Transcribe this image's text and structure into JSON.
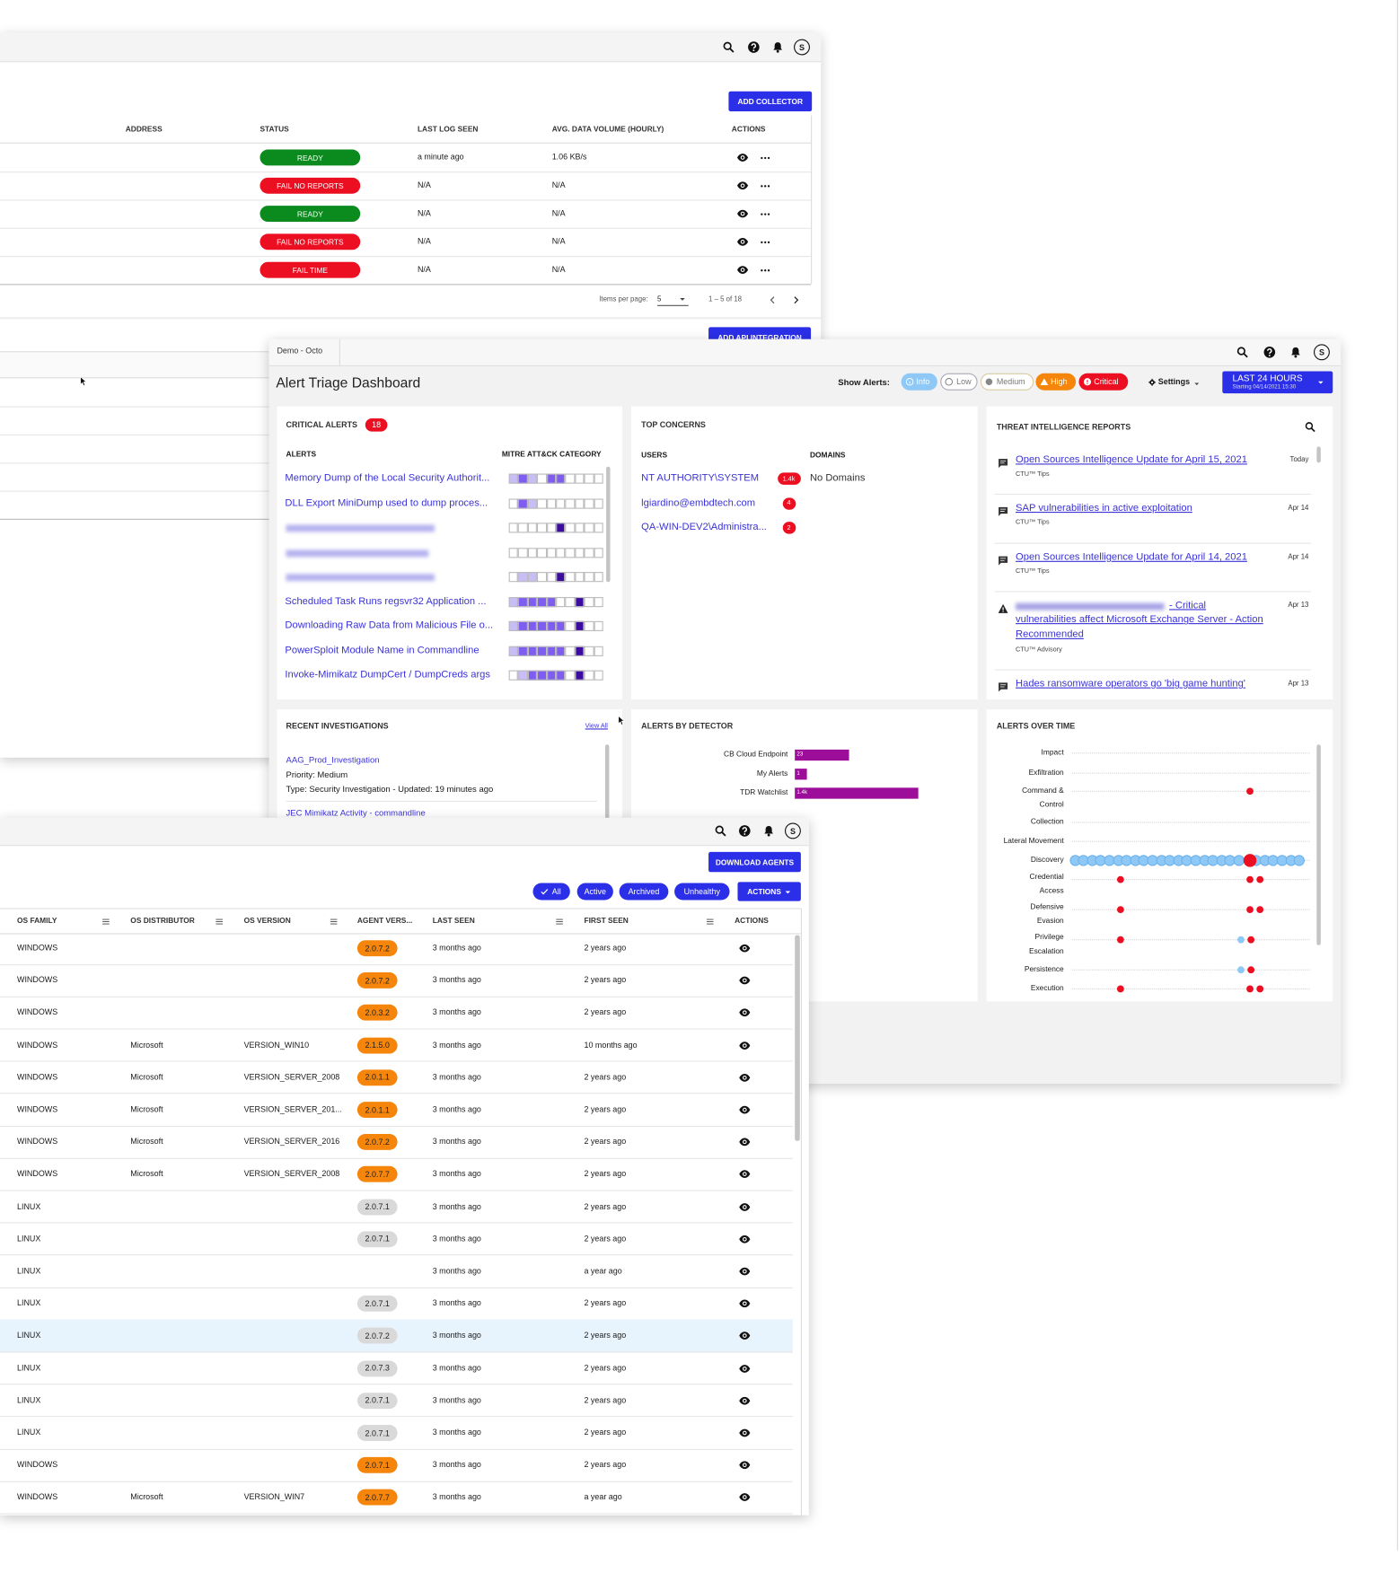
{
  "user_initial": "S",
  "collectors": {
    "add_button": "ADD COLLECTOR",
    "headers": [
      "ADDRESS",
      "STATUS",
      "LAST LOG SEEN",
      "AVG. DATA VOLUME (HOURLY)",
      "ACTIONS"
    ],
    "rows": [
      {
        "status": "READY",
        "status_color": "#0b8a1e",
        "last_log": "a minute ago",
        "volume": "1.06 KB/s"
      },
      {
        "status": "FAIL NO REPORTS",
        "status_color": "#ec0f22",
        "last_log": "N/A",
        "volume": "N/A"
      },
      {
        "status": "READY",
        "status_color": "#0b8a1e",
        "last_log": "N/A",
        "volume": "N/A"
      },
      {
        "status": "FAIL NO REPORTS",
        "status_color": "#ec0f22",
        "last_log": "N/A",
        "volume": "N/A"
      },
      {
        "status": "FAIL TIME",
        "status_color": "#ec0f22",
        "last_log": "N/A",
        "volume": "N/A"
      }
    ],
    "pagination": {
      "label": "Items per page:",
      "size": "5",
      "range": "1 – 5 of 18"
    },
    "api_button": "ADD API INTEGRATION"
  },
  "dashboard": {
    "tenant": "Demo - Octo",
    "title": "Alert Triage Dashboard",
    "show_alerts": "Show Alerts:",
    "filters": [
      {
        "label": "Info",
        "color": "#8ec8f6"
      },
      {
        "label": "Low",
        "color": "#ffffff"
      },
      {
        "label": "Medium",
        "color": "#ffffff"
      },
      {
        "label": "High",
        "color": "#f5860b"
      },
      {
        "label": "Critical",
        "color": "#ec0f22"
      }
    ],
    "settings": "Settings",
    "time_range": {
      "label": "LAST 24 HOURS",
      "sub": "Starting 04/14/2021 15:30"
    },
    "critical_alerts": {
      "title": "CRITICAL ALERTS",
      "count": "18",
      "headers": [
        "ALERTS",
        "MITRE ATT&CK CATEGORY"
      ],
      "alerts": [
        "Memory Dump of the Local Security Authorit...",
        "DLL Export MiniDump used to dump proces...",
        "Scheduled Task Runs regsvr32 Application ...",
        "Downloading Raw Data from Malicious File o...",
        "PowerSploit Module Name in Commandline",
        "Invoke-Mimikatz DumpCert / DumpCreds args"
      ]
    },
    "top_concerns": {
      "title": "TOP CONCERNS",
      "users_header": "USERS",
      "domains_header": "DOMAINS",
      "users": [
        {
          "name": "NT AUTHORITY\\SYSTEM",
          "count": "1.4k"
        },
        {
          "name": "lgiardino@embdtech.com",
          "count": "4"
        },
        {
          "name": "QA-WIN-DEV2\\Administra...",
          "count": "2"
        }
      ],
      "domains": "No Domains"
    },
    "threat_reports": {
      "title": "THREAT INTELLIGENCE REPORTS",
      "items": [
        {
          "title": "Open Sources Intelligence Update for April 15, 2021",
          "source": "CTU™ Tips",
          "date": "Today"
        },
        {
          "title": "SAP vulnerabilities in active exploitation",
          "source": "CTU™ Tips",
          "date": "Apr 14"
        },
        {
          "title": "Open Sources Intelligence Update for April 14, 2021",
          "source": "CTU™ Tips",
          "date": "Apr 14"
        },
        {
          "title": "- Critical vulnerabilities affect Microsoft Exchange Server - Action Recommended",
          "source": "CTU™ Advisory",
          "date": "Apr 13"
        },
        {
          "title": "Hades ransomware operators go 'big game hunting'",
          "date": "Apr 13"
        }
      ]
    },
    "recent_investigations": {
      "title": "RECENT INVESTIGATIONS",
      "view_all": "View All",
      "items": [
        {
          "name": "AAG_Prod_Investigation",
          "priority": "Priority: Medium",
          "type": "Type: Security Investigation - Updated: 19 minutes ago"
        },
        {
          "name": "JEC Mimikatz Activity - commandline"
        }
      ]
    },
    "alerts_by_detector": {
      "title": "ALERTS BY DETECTOR",
      "categories": [
        "CB Cloud Endpoint",
        "My Alerts",
        "TDR Watchlist"
      ],
      "values": [
        23,
        1,
        1400
      ],
      "value_labels": [
        "23",
        "1",
        "1.4k"
      ],
      "color": "#9c0d99"
    },
    "alerts_over_time": {
      "title": "ALERTS OVER TIME",
      "categories": [
        "Impact",
        "Exfiltration",
        "Command & Control",
        "Collection",
        "Lateral Movement",
        "Discovery",
        "Credential Access",
        "Defensive Evasion",
        "Privilege Escalation",
        "Persistence",
        "Execution"
      ]
    }
  },
  "agents": {
    "download_button": "DOWNLOAD AGENTS",
    "filters": [
      "All",
      "Active",
      "Archived",
      "Unhealthy"
    ],
    "actions": "ACTIONS",
    "headers": [
      "OS FAMILY",
      "OS DISTRIBUTOR",
      "OS VERSION",
      "AGENT VERS...",
      "LAST SEEN",
      "FIRST SEEN",
      "ACTIONS"
    ],
    "rows": [
      {
        "os": "WINDOWS",
        "distributor": null,
        "version": null,
        "agent": "2.0.7.2",
        "agent_color": "#f5860b",
        "last_seen": "3 months ago",
        "first_seen": "2 years ago"
      },
      {
        "os": "WINDOWS",
        "distributor": null,
        "version": null,
        "agent": "2.0.7.2",
        "agent_color": "#f5860b",
        "last_seen": "3 months ago",
        "first_seen": "2 years ago"
      },
      {
        "os": "WINDOWS",
        "distributor": null,
        "version": null,
        "agent": "2.0.3.2",
        "agent_color": "#f5860b",
        "last_seen": "3 months ago",
        "first_seen": "2 years ago"
      },
      {
        "os": "WINDOWS",
        "distributor": "Microsoft",
        "version": "VERSION_WIN10",
        "agent": "2.1.5.0",
        "agent_color": "#f5860b",
        "last_seen": "3 months ago",
        "first_seen": "10 months ago"
      },
      {
        "os": "WINDOWS",
        "distributor": "Microsoft",
        "version": "VERSION_SERVER_2008",
        "agent": "2.0.1.1",
        "agent_color": "#f5860b",
        "last_seen": "3 months ago",
        "first_seen": "2 years ago"
      },
      {
        "os": "WINDOWS",
        "distributor": "Microsoft",
        "version": "VERSION_SERVER_201...",
        "agent": "2.0.1.1",
        "agent_color": "#f5860b",
        "last_seen": "3 months ago",
        "first_seen": "2 years ago"
      },
      {
        "os": "WINDOWS",
        "distributor": "Microsoft",
        "version": "VERSION_SERVER_2016",
        "agent": "2.0.7.2",
        "agent_color": "#f5860b",
        "last_seen": "3 months ago",
        "first_seen": "2 years ago"
      },
      {
        "os": "WINDOWS",
        "distributor": "Microsoft",
        "version": "VERSION_SERVER_2008",
        "agent": "2.0.7.7",
        "agent_color": "#f5860b",
        "last_seen": "3 months ago",
        "first_seen": "2 years ago"
      },
      {
        "os": "LINUX",
        "distributor": null,
        "version": null,
        "agent": "2.0.7.1",
        "agent_color": "#d9d9d9",
        "last_seen": "3 months ago",
        "first_seen": "2 years ago"
      },
      {
        "os": "LINUX",
        "distributor": null,
        "version": null,
        "agent": "2.0.7.1",
        "agent_color": "#d9d9d9",
        "last_seen": "3 months ago",
        "first_seen": "2 years ago"
      },
      {
        "os": "LINUX",
        "distributor": null,
        "version": null,
        "agent": null,
        "last_seen": "3 months ago",
        "first_seen": "a year ago"
      },
      {
        "os": "LINUX",
        "distributor": null,
        "version": null,
        "agent": "2.0.7.1",
        "agent_color": "#d9d9d9",
        "last_seen": "3 months ago",
        "first_seen": "2 years ago"
      },
      {
        "os": "LINUX",
        "distributor": null,
        "version": null,
        "agent": "2.0.7.2",
        "agent_color": "#d9d9d9",
        "last_seen": "3 months ago",
        "first_seen": "2 years ago"
      },
      {
        "os": "LINUX",
        "distributor": null,
        "version": null,
        "agent": "2.0.7.3",
        "agent_color": "#d9d9d9",
        "last_seen": "3 months ago",
        "first_seen": "2 years ago"
      },
      {
        "os": "LINUX",
        "distributor": null,
        "version": null,
        "agent": "2.0.7.1",
        "agent_color": "#d9d9d9",
        "last_seen": "3 months ago",
        "first_seen": "2 years ago"
      },
      {
        "os": "LINUX",
        "distributor": null,
        "version": null,
        "agent": "2.0.7.1",
        "agent_color": "#d9d9d9",
        "last_seen": "3 months ago",
        "first_seen": "2 years ago"
      },
      {
        "os": "WINDOWS",
        "distributor": null,
        "version": null,
        "agent": "2.0.7.1",
        "agent_color": "#f5860b",
        "last_seen": "3 months ago",
        "first_seen": "2 years ago"
      },
      {
        "os": "WINDOWS",
        "distributor": "Microsoft",
        "version": "VERSION_WIN7",
        "agent": "2.0.7.7",
        "agent_color": "#f5860b",
        "last_seen": "3 months ago",
        "first_seen": "a year ago"
      }
    ]
  }
}
